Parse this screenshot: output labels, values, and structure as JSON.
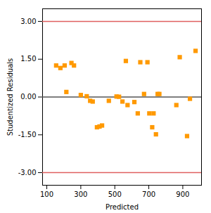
{
  "chart_data": {
    "type": "scatter",
    "x": [
      155,
      180,
      205,
      215,
      245,
      260,
      300,
      335,
      355,
      370,
      395,
      410,
      425,
      465,
      510,
      525,
      545,
      565,
      575,
      615,
      635,
      650,
      672,
      692,
      703,
      720,
      728,
      742,
      752,
      762,
      862,
      882,
      925,
      942,
      975
    ],
    "values": [
      1.25,
      1.15,
      1.25,
      0.2,
      1.35,
      1.25,
      0.08,
      0.03,
      -0.15,
      -0.18,
      -1.2,
      -1.17,
      -1.13,
      -0.15,
      0.02,
      0.01,
      -0.18,
      1.43,
      -0.32,
      -0.2,
      -0.65,
      1.38,
      0.12,
      1.38,
      -0.65,
      -1.2,
      -0.65,
      -1.48,
      0.12,
      0.12,
      -0.32,
      1.58,
      -1.55,
      -0.07,
      1.83
    ],
    "color": "#ff9900",
    "marker": "square",
    "xlim": [
      75,
      1010
    ],
    "ylim": [
      -3.5,
      3.5
    ],
    "xticks": [
      100,
      300,
      500,
      700,
      900
    ],
    "yticks": [
      {
        "value": -3.0,
        "label": "-3.00"
      },
      {
        "value": -1.5,
        "label": "-1.50"
      },
      {
        "value": 0.0,
        "label": "0.00"
      },
      {
        "value": 1.5,
        "label": "1.50"
      },
      {
        "value": 3.0,
        "label": "3.00"
      }
    ],
    "hlines": [
      {
        "y": 3.0,
        "color": "#e06060"
      },
      {
        "y": -3.0,
        "color": "#e06060"
      },
      {
        "y": 0,
        "color": "#555555"
      }
    ],
    "xlabel": "Predicted",
    "ylabel": "Studentized Residuals",
    "grid": false
  }
}
